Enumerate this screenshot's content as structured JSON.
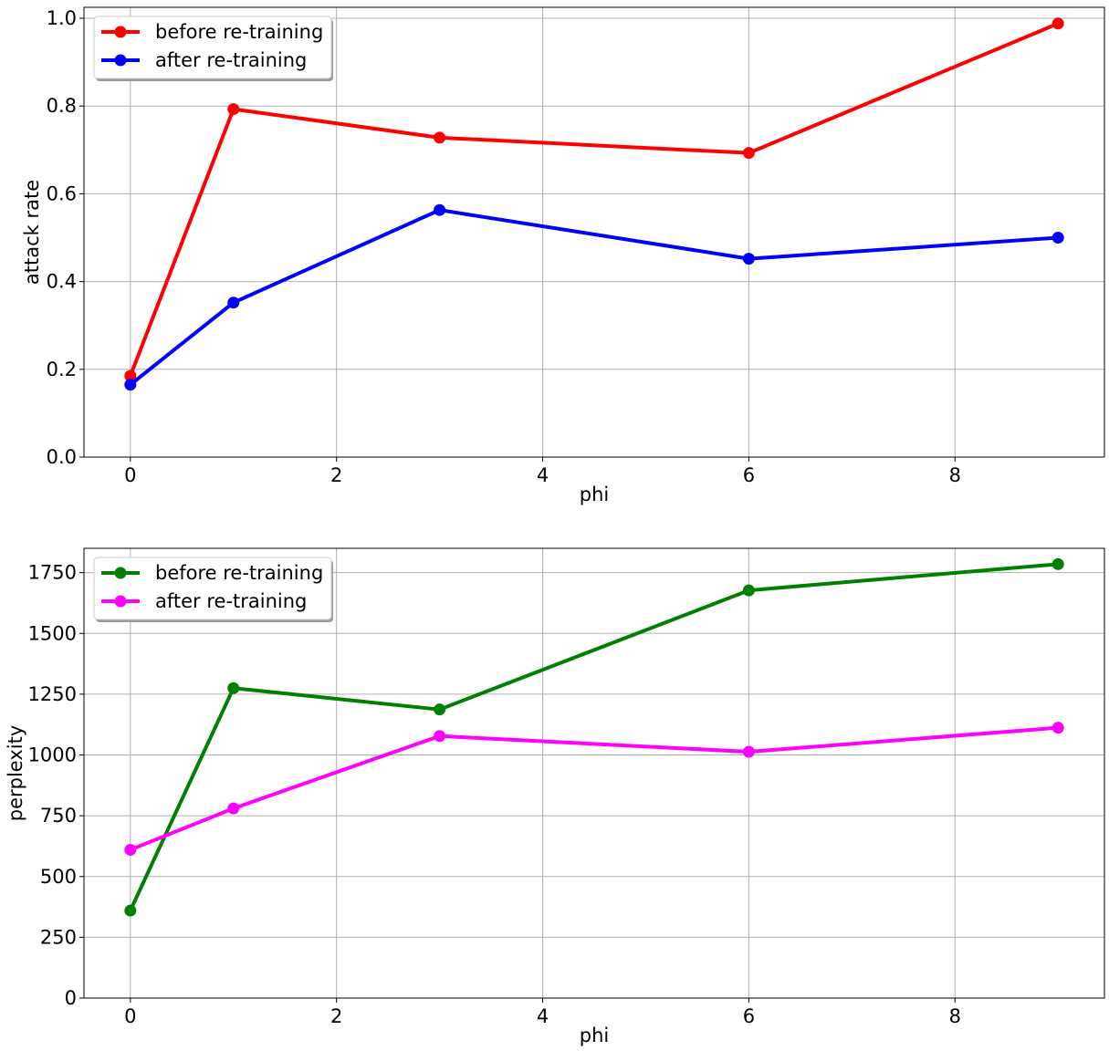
{
  "chart_data": [
    {
      "type": "line",
      "xlabel": "phi",
      "ylabel": "attack rate",
      "xlim": [
        -0.45,
        9.45
      ],
      "ylim": [
        0.0,
        1.025
      ],
      "x_ticks": [
        0,
        2,
        4,
        6,
        8
      ],
      "y_ticks": [
        0.0,
        0.2,
        0.4,
        0.6,
        0.8,
        1.0
      ],
      "x_tick_labels": [
        "0",
        "2",
        "4",
        "6",
        "8"
      ],
      "y_tick_labels": [
        "0.0",
        "0.2",
        "0.4",
        "0.6",
        "0.8",
        "1.0"
      ],
      "grid": true,
      "legend_position": "top-left",
      "x": [
        0,
        1,
        3,
        6,
        9
      ],
      "series": [
        {
          "name": "before re-training",
          "color": "#ff0000",
          "values": [
            0.185,
            0.793,
            0.728,
            0.693,
            0.988
          ]
        },
        {
          "name": "after re-training",
          "color": "#0000ff",
          "values": [
            0.165,
            0.352,
            0.563,
            0.452,
            0.5
          ]
        }
      ]
    },
    {
      "type": "line",
      "xlabel": "phi",
      "ylabel": "perplexity",
      "xlim": [
        -0.45,
        9.45
      ],
      "ylim": [
        0,
        1850
      ],
      "x_ticks": [
        0,
        2,
        4,
        6,
        8
      ],
      "y_ticks": [
        0,
        250,
        500,
        750,
        1000,
        1250,
        1500,
        1750
      ],
      "x_tick_labels": [
        "0",
        "2",
        "4",
        "6",
        "8"
      ],
      "y_tick_labels": [
        "0",
        "250",
        "500",
        "750",
        "1000",
        "1250",
        "1500",
        "1750"
      ],
      "grid": true,
      "legend_position": "top-left",
      "x": [
        0,
        1,
        3,
        6,
        9
      ],
      "series": [
        {
          "name": "before re-training",
          "color": "#008000",
          "values": [
            360,
            1275,
            1187,
            1677,
            1785
          ]
        },
        {
          "name": "after re-training",
          "color": "#ff00ff",
          "values": [
            610,
            780,
            1078,
            1013,
            1112
          ]
        }
      ]
    }
  ]
}
